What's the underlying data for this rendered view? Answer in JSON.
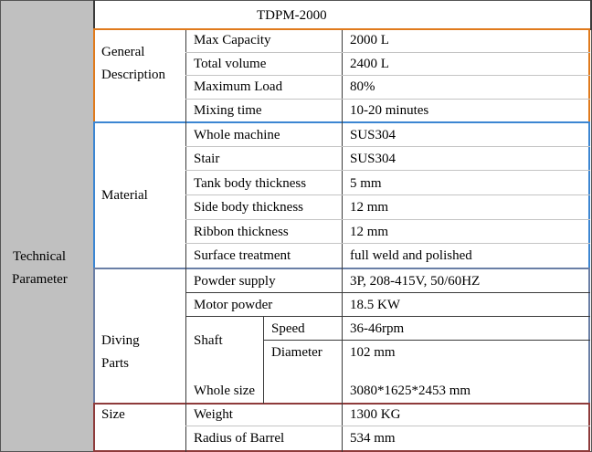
{
  "table": {
    "model": "TDPM-2000",
    "group_label_line1": "Technical",
    "group_label_line2": "Parameter",
    "colors": {
      "general": "#e07a1c",
      "material": "#3c86d2",
      "diving": "#6a7fa6",
      "size": "#8e3b3b"
    },
    "sections": {
      "general": {
        "label_line1": "General",
        "label_line2": "Description",
        "rows": [
          {
            "name": "Max Capacity",
            "value": "2000 L"
          },
          {
            "name": "Total volume",
            "value": "2400 L"
          },
          {
            "name": "Maximum Load",
            "value": "80%"
          },
          {
            "name": "Mixing time",
            "value": "10-20 minutes"
          }
        ]
      },
      "material": {
        "label": "Material",
        "rows": [
          {
            "name": "Whole machine",
            "value": "SUS304"
          },
          {
            "name": "Stair",
            "value": "SUS304"
          },
          {
            "name": "Tank body thickness",
            "value": "5 mm"
          },
          {
            "name": "Side body thickness",
            "value": "12 mm"
          },
          {
            "name": "Ribbon thickness",
            "value": "12 mm"
          },
          {
            "name": "Surface treatment",
            "value": "full weld and polished"
          }
        ]
      },
      "diving": {
        "label_line1": "Diving",
        "label_line2": "Parts",
        "rows": [
          {
            "name": "Powder supply",
            "value": "3P, 208-415V, 50/60HZ"
          },
          {
            "name": "Motor powder",
            "value": "18.5 KW"
          }
        ],
        "shaft": {
          "label": "Shaft",
          "rows": [
            {
              "name": "Speed",
              "value": "36-46rpm"
            },
            {
              "name": "Diameter",
              "value": "102 mm"
            }
          ]
        }
      },
      "size": {
        "label": "Size",
        "rows": [
          {
            "name": "Whole size",
            "value": "3080*1625*2453 mm"
          },
          {
            "name": "Weight",
            "value": "1300 KG"
          },
          {
            "name": "Radius of Barrel",
            "value": "534 mm"
          }
        ]
      }
    }
  }
}
